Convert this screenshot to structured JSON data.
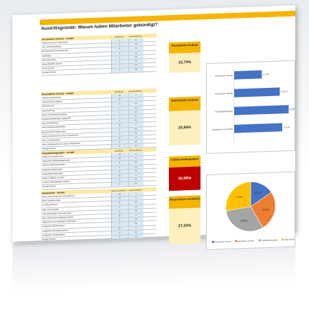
{
  "title": "Austrittsgründe: Warum haben Mitarbeiter gekündigt?",
  "col_labels": {
    "c1": "zutreffend",
    "c2": "nicht zutreffend"
  },
  "col_labels_alt": {
    "c1": "Grund zutreffend",
    "c2": "nicht zutreffend"
  },
  "sections": [
    {
      "heading": "Persönliche Gründe - Anzahl",
      "side_label": "Persönliche Gründe",
      "side_value": "15,74%",
      "accent": "#f5b400",
      "value_bg": "#fdf0bd",
      "rows": [
        {
          "label": "Kindererziehung/ Familienarbeit",
          "a": "1",
          "b": "17"
        },
        {
          "label": "Aus- und Weiterbildung",
          "a": "2",
          "b": "16"
        },
        {
          "label": "Berufswechsel/ Neuorientierung",
          "a": "6",
          "b": "12"
        },
        {
          "label": "Arbeitsweg",
          "a": "4",
          "b": "14"
        },
        {
          "label": "Wohnortwechsel",
          "a": "2",
          "b": "16"
        },
        {
          "label": "Gesundheitliche Gründe",
          "a": "1",
          "b": "17"
        },
        {
          "label": "Pensionierung",
          "a": "1",
          "b": "15"
        },
        {
          "label": "Sonstige Gründe",
          "a": "0",
          "b": "18"
        }
      ]
    },
    {
      "heading": "Betriebliche Gründe - Anzahl",
      "side_label": "Betriebliche Gründe",
      "side_value": "25,94%",
      "accent": "#f5b400",
      "value_bg": "#fdf0bd",
      "rows": [
        {
          "label": "schlechte Einarbeitung",
          "a": "19",
          "b": "1"
        },
        {
          "label": "uninteressante Aufgaben",
          "a": "19",
          "b": "1"
        },
        {
          "label": "Überforderung",
          "a": "2",
          "b": "22"
        },
        {
          "label": "Unterforderung",
          "a": "1",
          "b": "22"
        },
        {
          "label": "falsche Positionsbeschreibung",
          "a": "2",
          "b": "22"
        },
        {
          "label": "Kompetenzeröffnungen angewandt",
          "a": "7",
          "b": "17"
        },
        {
          "label": "keine Weiterbildung",
          "a": "3",
          "b": "21"
        },
        {
          "label": "keine Aufstiegsmöglichkeiten",
          "a": "15",
          "b": "9"
        },
        {
          "label": "Beziehung nicht angemessen",
          "a": "8",
          "b": "16"
        },
        {
          "label": "höheres Einkommen im neuen Unternehmen",
          "a": "2",
          "b": "22"
        },
        {
          "label": "keine Leistungsprämie",
          "a": "10",
          "b": "14"
        },
        {
          "label": "mehr Leistungsanreize im neuen Unternehmen",
          "a": "3",
          "b": "21"
        },
        {
          "label": "Sonstige Gründe",
          "a": "0",
          "b": "24"
        }
      ]
    },
    {
      "heading": "Arbeitsbedingungen - Anzahl",
      "side_label": "Arbeits-bedingungen",
      "side_value": "30,98%",
      "accent": "#f5b400",
      "value_bg": "#c00000",
      "value_color": "#ffffff",
      "rows": [
        {
          "label": "Arbeitszeit unangemessen",
          "a": "19",
          "b": "5"
        },
        {
          "label": "unpassende Arbeitszeitregelungen",
          "a": "19",
          "b": "5"
        },
        {
          "label": "schlechte Arbeitsatmosphäre",
          "a": "2",
          "b": "22"
        },
        {
          "label": "schlechtes Arbeitsumfeld",
          "a": "4",
          "b": "20"
        },
        {
          "label": "mangelhafte Arbeitsmittel",
          "a": "4",
          "b": "20"
        },
        {
          "label": "unklare Aufgaben und Ziele",
          "a": "15",
          "b": "9"
        },
        {
          "label": "zu wenig selbstständiges Arbeiten",
          "a": "2",
          "b": "22"
        },
        {
          "label": "Sonstige Gründe",
          "a": "0",
          "b": "24"
        }
      ]
    },
    {
      "heading": "Vorgesetzte - Anzahl",
      "side_label": "Vorgesetzten-verhältnis",
      "side_value": "27,33%",
      "accent": "#f5b400",
      "value_bg": "#fdf0bd",
      "rows": [
        {
          "label": "keine Anerkennung oder Wertschätzung",
          "a": "19",
          "b": "5"
        },
        {
          "label": "keine Feedbackrunden",
          "a": "19",
          "b": "5"
        },
        {
          "label": "zu wenig informiert",
          "a": "2",
          "b": "22"
        },
        {
          "label": "Kritik nicht akzeptiert",
          "a": "4",
          "b": "20"
        },
        {
          "label": "in Entscheidungen nicht einbezogen",
          "a": "4",
          "b": "20"
        },
        {
          "label": "keine motivierende Arbeitsatmosphäre",
          "a": "15",
          "b": "9"
        },
        {
          "label": "Ungleichheit, kein Rückhalt für Mitarbeiter",
          "a": "2",
          "b": "22"
        },
        {
          "label": "mangelnde Fachkompetenz",
          "a": "8",
          "b": "16"
        },
        {
          "label": "mangelnde Führungskompetenz",
          "a": "19",
          "b": "5"
        },
        {
          "label": "mangelnde Sozialkompetenz",
          "a": "4",
          "b": "20"
        },
        {
          "label": "Sonstige Gründe",
          "a": "0",
          "b": "24"
        }
      ]
    }
  ],
  "chart_data": [
    {
      "type": "bar",
      "orientation": "horizontal",
      "categories": [
        "Persönliche Gründe",
        "Betriebliche Gründe",
        "Arbeitsbedingungen",
        "Vorgesetzten-verhältnis"
      ],
      "values": [
        15.74,
        25.94,
        30.98,
        27.33
      ],
      "value_labels": [
        "15,74%",
        "25,94%",
        "30,98%",
        "27,33%"
      ],
      "xlim": [
        0,
        32
      ],
      "color": "#4472c4",
      "grid": false
    },
    {
      "type": "pie",
      "categories": [
        "Persönliche Gründe",
        "Betriebliche Gründe",
        "Arbeitsbedingungen",
        "Vorgesetzten-verhältnis"
      ],
      "values": [
        15.74,
        25.94,
        30.98,
        27.33
      ],
      "value_labels": [
        "15,74%",
        "25,94%",
        "30,98%",
        "27,33%"
      ],
      "colors": [
        "#4472c4",
        "#ed7d31",
        "#a5a5a5",
        "#ffc000"
      ],
      "legend": "bottom"
    }
  ]
}
